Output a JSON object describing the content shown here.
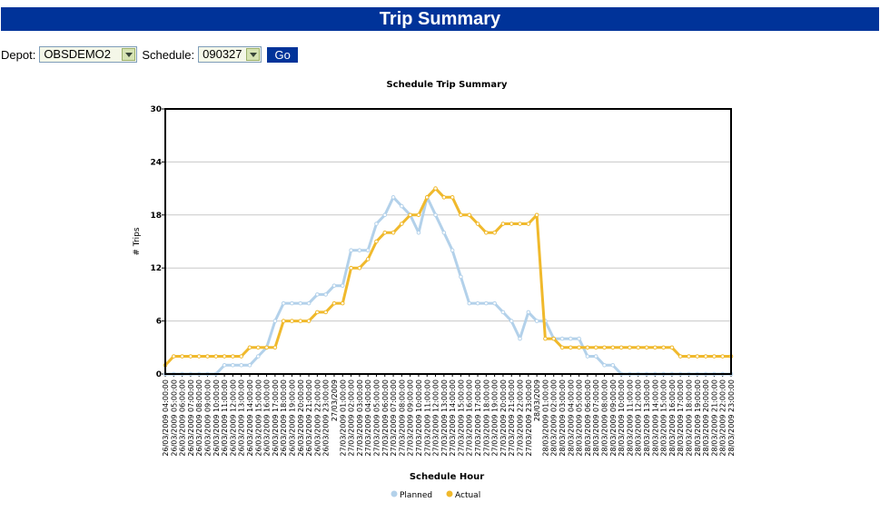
{
  "page": {
    "title": "Trip Summary"
  },
  "filters": {
    "depot_label": "Depot:",
    "depot_value": "OBSDEMO2",
    "schedule_label": "Schedule:",
    "schedule_value": "090327",
    "go_label": "Go"
  },
  "chart_data": {
    "type": "line",
    "title": "Schedule Trip Summary",
    "xlabel": "Schedule Hour",
    "ylabel": "# Trips",
    "ylim": [
      0,
      30
    ],
    "yticks": [
      0,
      6,
      12,
      18,
      24,
      30
    ],
    "grid": true,
    "legend_position": "bottom",
    "categories": [
      "26/03/2009 04:00:00",
      "26/03/2009 05:00:00",
      "26/03/2009 06:00:00",
      "26/03/2009 07:00:00",
      "26/03/2009 08:00:00",
      "26/03/2009 09:00:00",
      "26/03/2009 10:00:00",
      "26/03/2009 11:00:00",
      "26/03/2009 12:00:00",
      "26/03/2009 13:00:00",
      "26/03/2009 14:00:00",
      "26/03/2009 15:00:00",
      "26/03/2009 16:00:00",
      "26/03/2009 17:00:00",
      "26/03/2009 18:00:00",
      "26/03/2009 19:00:00",
      "26/03/2009 20:00:00",
      "26/03/2009 21:00:00",
      "26/03/2009 22:00:00",
      "26/03/2009 23:00:00",
      "27/03/2009",
      "27/03/2009 01:00:00",
      "27/03/2009 02:00:00",
      "27/03/2009 03:00:00",
      "27/03/2009 04:00:00",
      "27/03/2009 05:00:00",
      "27/03/2009 06:00:00",
      "27/03/2009 07:00:00",
      "27/03/2009 08:00:00",
      "27/03/2009 09:00:00",
      "27/03/2009 10:00:00",
      "27/03/2009 11:00:00",
      "27/03/2009 12:00:00",
      "27/03/2009 13:00:00",
      "27/03/2009 14:00:00",
      "27/03/2009 15:00:00",
      "27/03/2009 16:00:00",
      "27/03/2009 17:00:00",
      "27/03/2009 18:00:00",
      "27/03/2009 19:00:00",
      "27/03/2009 20:00:00",
      "27/03/2009 21:00:00",
      "27/03/2009 22:00:00",
      "27/03/2009 23:00:00",
      "28/03/2009",
      "28/03/2009 01:00:00",
      "28/03/2009 02:00:00",
      "28/03/2009 03:00:00",
      "28/03/2009 04:00:00",
      "28/03/2009 05:00:00",
      "28/03/2009 06:00:00",
      "28/03/2009 07:00:00",
      "28/03/2009 08:00:00",
      "28/03/2009 09:00:00",
      "28/03/2009 10:00:00",
      "28/03/2009 11:00:00",
      "28/03/2009 12:00:00",
      "28/03/2009 13:00:00",
      "28/03/2009 14:00:00",
      "28/03/2009 15:00:00",
      "28/03/2009 16:00:00",
      "28/03/2009 17:00:00",
      "28/03/2009 18:00:00",
      "28/03/2009 19:00:00",
      "28/03/2009 20:00:00",
      "28/03/2009 21:00:00",
      "28/03/2009 22:00:00",
      "28/03/2009 23:00:00"
    ],
    "series": [
      {
        "name": "Planned",
        "color": "#b3d1ea",
        "values": [
          0,
          0,
          0,
          0,
          0,
          0,
          0,
          1,
          1,
          1,
          1,
          2,
          3,
          6,
          8,
          8,
          8,
          8,
          9,
          9,
          10,
          10,
          14,
          14,
          14,
          17,
          18,
          20,
          19,
          18,
          16,
          20,
          18,
          16,
          14,
          11,
          8,
          8,
          8,
          8,
          7,
          6,
          4,
          7,
          6,
          6,
          4,
          4,
          4,
          4,
          2,
          2,
          1,
          1,
          0,
          0,
          0,
          0,
          0,
          0,
          0,
          0,
          0,
          0,
          0,
          0,
          0,
          0
        ]
      },
      {
        "name": "Actual",
        "color": "#f0b92c",
        "values": [
          1,
          2,
          2,
          2,
          2,
          2,
          2,
          2,
          2,
          2,
          3,
          3,
          3,
          3,
          6,
          6,
          6,
          6,
          7,
          7,
          8,
          8,
          12,
          12,
          13,
          15,
          16,
          16,
          17,
          18,
          18,
          20,
          21,
          20,
          20,
          18,
          18,
          17,
          16,
          16,
          17,
          17,
          17,
          17,
          18,
          4,
          4,
          3,
          3,
          3,
          3,
          3,
          3,
          3,
          3,
          3,
          3,
          3,
          3,
          3,
          3,
          2,
          2,
          2,
          2,
          2,
          2,
          2
        ]
      }
    ]
  }
}
